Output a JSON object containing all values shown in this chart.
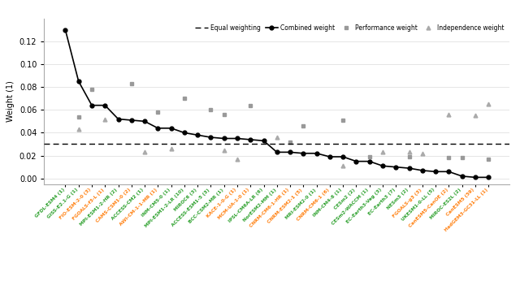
{
  "models": [
    "GFDL-ESM4 (1)",
    "GISS-E2.1-G (1)",
    "FIO-ESM-2-0 (3)",
    "FGOALS-f3-L (1)",
    "MPI-ESM1-2-HR (2)",
    "CAMS-CSM1-0 (2)",
    "ACCESS-CM2 (1)",
    "AWI-CM-1-1-MR (1)",
    "INM-CM5-0 (1)",
    "MPI-ESM1-2-LR (10)",
    "MIROC6 (3)",
    "ACCESS-ESM1-5 (3)",
    "BCC-CSM2-MR (1)",
    "KACE-1-0-G (1)",
    "MCM-UA-1-0 (1)",
    "IPSL-CM6A-LR (6)",
    "NorESM2-MM (1)",
    "CNRM-CM6-1-HR (1)",
    "CNRM-ESM2-1 (5)",
    "MRI-ESM2-0 (1)",
    "CNRM-CM6-1 (6)",
    "INM-CM4-8 (1)",
    "CESm2 (2)",
    "CESm2-WACCM (1)",
    "EC-Earth3-Veg (3)",
    "EC-Earth3 (7)",
    "NESm3 (2)",
    "FGOALS-g3 (3)",
    "UKESM1-0-LL (5)",
    "CanESM5-CanOE (2)",
    "MIROC-ES2L (2)",
    "CanESM5 (59)",
    "HadGEM3-GC31-LL (1)"
  ],
  "model_colors": [
    "#2ca02c",
    "#2ca02c",
    "#ff7f0e",
    "#ff7f0e",
    "#2ca02c",
    "#ff7f0e",
    "#2ca02c",
    "#ff7f0e",
    "#2ca02c",
    "#2ca02c",
    "#2ca02c",
    "#2ca02c",
    "#2ca02c",
    "#ff7f0e",
    "#ff7f0e",
    "#2ca02c",
    "#2ca02c",
    "#ff7f0e",
    "#ff7f0e",
    "#2ca02c",
    "#ff7f0e",
    "#2ca02c",
    "#2ca02c",
    "#2ca02c",
    "#2ca02c",
    "#2ca02c",
    "#2ca02c",
    "#ff7f0e",
    "#2ca02c",
    "#ff7f0e",
    "#2ca02c",
    "#ff7f0e",
    "#ff7f0e"
  ],
  "combined_weights": [
    0.13,
    0.085,
    0.064,
    0.064,
    0.052,
    0.051,
    0.05,
    0.044,
    0.044,
    0.04,
    0.038,
    0.036,
    0.035,
    0.035,
    0.034,
    0.033,
    0.023,
    0.023,
    0.022,
    0.022,
    0.019,
    0.019,
    0.015,
    0.015,
    0.011,
    0.01,
    0.009,
    0.007,
    0.006,
    0.006,
    0.002,
    0.001,
    0.001
  ],
  "performance_weights": [
    null,
    0.054,
    0.078,
    null,
    null,
    0.083,
    null,
    0.058,
    null,
    0.07,
    null,
    0.06,
    0.056,
    null,
    0.064,
    null,
    null,
    0.032,
    0.046,
    null,
    null,
    0.051,
    null,
    0.019,
    null,
    null,
    0.019,
    null,
    null,
    0.018,
    0.018,
    null,
    0.017
  ],
  "independence_weights": [
    null,
    0.043,
    null,
    0.052,
    null,
    null,
    0.023,
    null,
    0.026,
    null,
    null,
    null,
    0.025,
    0.017,
    null,
    null,
    0.036,
    null,
    null,
    null,
    null,
    0.011,
    null,
    null,
    0.023,
    null,
    0.023,
    0.022,
    null,
    0.056,
    null,
    0.055,
    0.065
  ],
  "equal_weight": 0.0303,
  "ylabel": "Weight (1)",
  "ylim": [
    -0.005,
    0.14
  ],
  "yticks": [
    0.0,
    0.02,
    0.04,
    0.06,
    0.08,
    0.1,
    0.12
  ],
  "bg_color": "#ffffff",
  "grid_color": "#e0e0e0",
  "combined_color": "#000000",
  "perf_color": "#999999",
  "indep_color": "#aaaaaa",
  "dashed_color": "#000000"
}
